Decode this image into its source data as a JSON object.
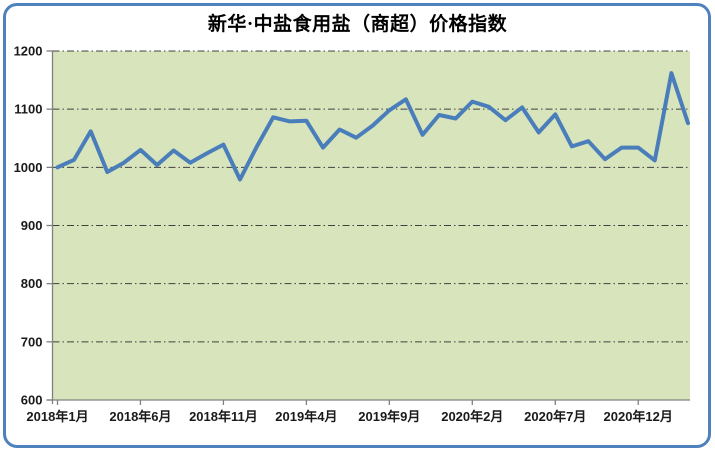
{
  "title": "新华·中盐食用盐（商超）价格指数",
  "frame": {
    "border_color": "#4F81BD"
  },
  "chart_data": {
    "type": "line",
    "title": "新华·中盐食用盐（商超）价格指数",
    "legend": "none",
    "grid": "horizontal dash-dot",
    "plot_bg": "#D8E4BC",
    "line_color": "#4A7EBB",
    "axis_color": "#808080",
    "gridline_color": "#404040",
    "ylim": [
      600,
      1200
    ],
    "yticks": [
      600,
      700,
      800,
      900,
      1000,
      1100,
      1200
    ],
    "xtick_labels": [
      "2018年1月",
      "2018年6月",
      "2018年11月",
      "2019年4月",
      "2019年9月",
      "2020年2月",
      "2020年7月",
      "2020年12月"
    ],
    "xtick_indices": [
      0,
      5,
      10,
      15,
      20,
      25,
      30,
      35
    ],
    "x_months": [
      "2018-01",
      "2018-02",
      "2018-03",
      "2018-04",
      "2018-05",
      "2018-06",
      "2018-07",
      "2018-08",
      "2018-09",
      "2018-10",
      "2018-11",
      "2018-12",
      "2019-01",
      "2019-02",
      "2019-03",
      "2019-04",
      "2019-05",
      "2019-06",
      "2019-07",
      "2019-08",
      "2019-09",
      "2019-10",
      "2019-11",
      "2019-12",
      "2020-01",
      "2020-02",
      "2020-03",
      "2020-04",
      "2020-05",
      "2020-06",
      "2020-07",
      "2020-08",
      "2020-09",
      "2020-10",
      "2020-11",
      "2020-12",
      "2021-01",
      "2021-02",
      "2021-03"
    ],
    "series": [
      {
        "name": "新华·中盐食用盐（商超）价格指数",
        "values": [
          1000,
          1013,
          1062,
          992,
          1008,
          1030,
          1004,
          1029,
          1008,
          1024,
          1039,
          979,
          1035,
          1086,
          1079,
          1080,
          1034,
          1065,
          1051,
          1072,
          1098,
          1117,
          1056,
          1090,
          1084,
          1113,
          1104,
          1081,
          1103,
          1060,
          1091,
          1036,
          1045,
          1014,
          1034,
          1034,
          1012,
          1162,
          1076
        ]
      }
    ]
  }
}
